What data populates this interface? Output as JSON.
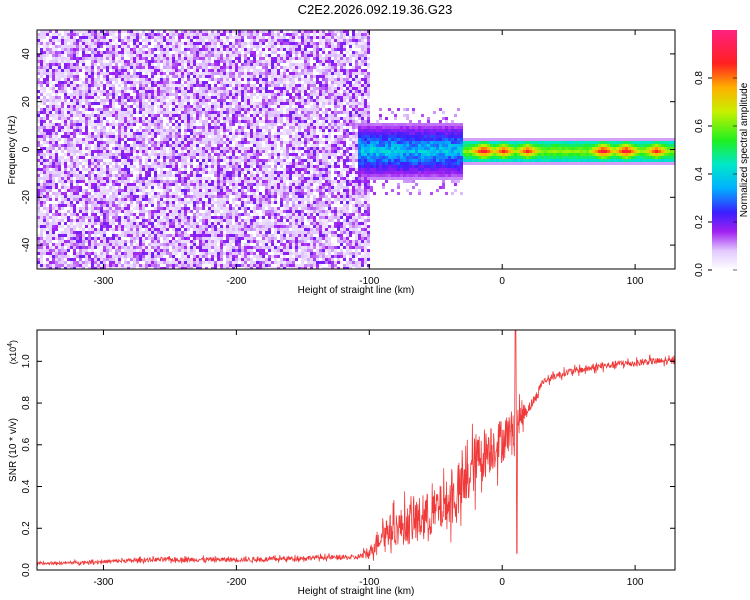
{
  "figure_title": "C2E2.2026.092.19.36.G23",
  "chart_data": [
    {
      "type": "heatmap",
      "title": "C2E2.2026.092.19.36.G23",
      "xlabel": "Height of straight line (km)",
      "ylabel": "Frequency (Hz)",
      "xlim": [
        -350,
        130
      ],
      "ylim": [
        -50,
        50
      ],
      "x_ticks": [
        -300,
        -200,
        -100,
        0,
        100
      ],
      "x_tick_labels": [
        "-300",
        "-200",
        "-100",
        "0",
        "100"
      ],
      "y_ticks": [
        -40,
        -20,
        0,
        20,
        40
      ],
      "y_tick_labels": [
        "-40",
        "-20",
        "0",
        "20",
        "40"
      ],
      "colorbar": {
        "label": "Normalized spectral amplitude",
        "range": [
          0,
          1
        ],
        "ticks": [
          0.0,
          0.2,
          0.4,
          0.6,
          0.8
        ],
        "tick_labels": [
          "0.0",
          "0.2",
          "0.4",
          "0.6",
          "0.8"
        ],
        "colormap": "rainbow (white-violet-blue-cyan-green-yellow-orange-red-magenta)"
      },
      "regions": [
        {
          "x_range": [
            -350,
            -100
          ],
          "description": "broadband noise across all frequencies",
          "amplitude_range": [
            0.05,
            0.2
          ]
        },
        {
          "x_range": [
            -110,
            -30
          ],
          "freq_center": 0,
          "freq_halfwidth": 12,
          "description": "signal emerging with spread",
          "amplitude_range": [
            0.1,
            0.45
          ]
        },
        {
          "x_range": [
            -30,
            130
          ],
          "freq_center": 0,
          "freq_halfwidth": 4,
          "description": "narrow carrier line",
          "amplitude_range": [
            0.4,
            1.0
          ]
        }
      ],
      "peaks": [
        {
          "x": -15,
          "freq": 0,
          "amplitude": 0.95
        },
        {
          "x": 0,
          "freq": 0,
          "amplitude": 0.9
        },
        {
          "x": 18,
          "freq": 0,
          "amplitude": 0.9
        },
        {
          "x": 75,
          "freq": 0,
          "amplitude": 0.95
        },
        {
          "x": 92,
          "freq": 0,
          "amplitude": 0.95
        },
        {
          "x": 115,
          "freq": 0,
          "amplitude": 0.9
        }
      ]
    },
    {
      "type": "line",
      "xlabel": "Height of straight line (km)",
      "ylabel": "SNR (10 * v/v)",
      "y_multiplier": "(x10",
      "y_multiplier_exp": "4",
      "y_multiplier_close": ")",
      "xlim": [
        -350,
        130
      ],
      "ylim": [
        0,
        1.15
      ],
      "x_ticks": [
        -300,
        -200,
        -100,
        0,
        100
      ],
      "x_tick_labels": [
        "-300",
        "-200",
        "-100",
        "0",
        "100"
      ],
      "y_ticks": [
        0.0,
        0.2,
        0.4,
        0.6,
        0.8,
        1.0
      ],
      "y_tick_labels": [
        "0.0",
        "0.2",
        "0.4",
        "0.6",
        "0.8",
        "1.0"
      ],
      "series_color": "#f03a3a",
      "series": [
        {
          "name": "SNR",
          "x": [
            -350,
            -300,
            -260,
            -220,
            -180,
            -140,
            -110,
            -100,
            -90,
            -80,
            -70,
            -60,
            -50,
            -40,
            -30,
            -20,
            -10,
            0,
            10,
            20,
            25,
            30,
            40,
            50,
            60,
            70,
            80,
            90,
            100,
            110,
            120,
            130
          ],
          "y": [
            0.03,
            0.04,
            0.05,
            0.05,
            0.05,
            0.06,
            0.06,
            0.08,
            0.18,
            0.2,
            0.22,
            0.25,
            0.28,
            0.32,
            0.38,
            0.52,
            0.58,
            0.62,
            0.7,
            0.78,
            0.82,
            0.9,
            0.93,
            0.95,
            0.96,
            0.97,
            0.98,
            0.99,
            0.99,
            1.0,
            1.0,
            1.0
          ],
          "noise_amplitude": [
            0.01,
            0.015,
            0.02,
            0.02,
            0.02,
            0.02,
            0.02,
            0.05,
            0.12,
            0.15,
            0.18,
            0.2,
            0.2,
            0.22,
            0.22,
            0.25,
            0.22,
            0.2,
            0.15,
            0.05,
            0.04,
            0.03,
            0.03,
            0.03,
            0.03,
            0.03,
            0.03,
            0.03,
            0.03,
            0.03,
            0.03,
            0.03
          ]
        }
      ],
      "spikes": [
        {
          "x": 10,
          "y": 1.15
        },
        {
          "x": 11,
          "y": 0.08
        }
      ]
    }
  ]
}
